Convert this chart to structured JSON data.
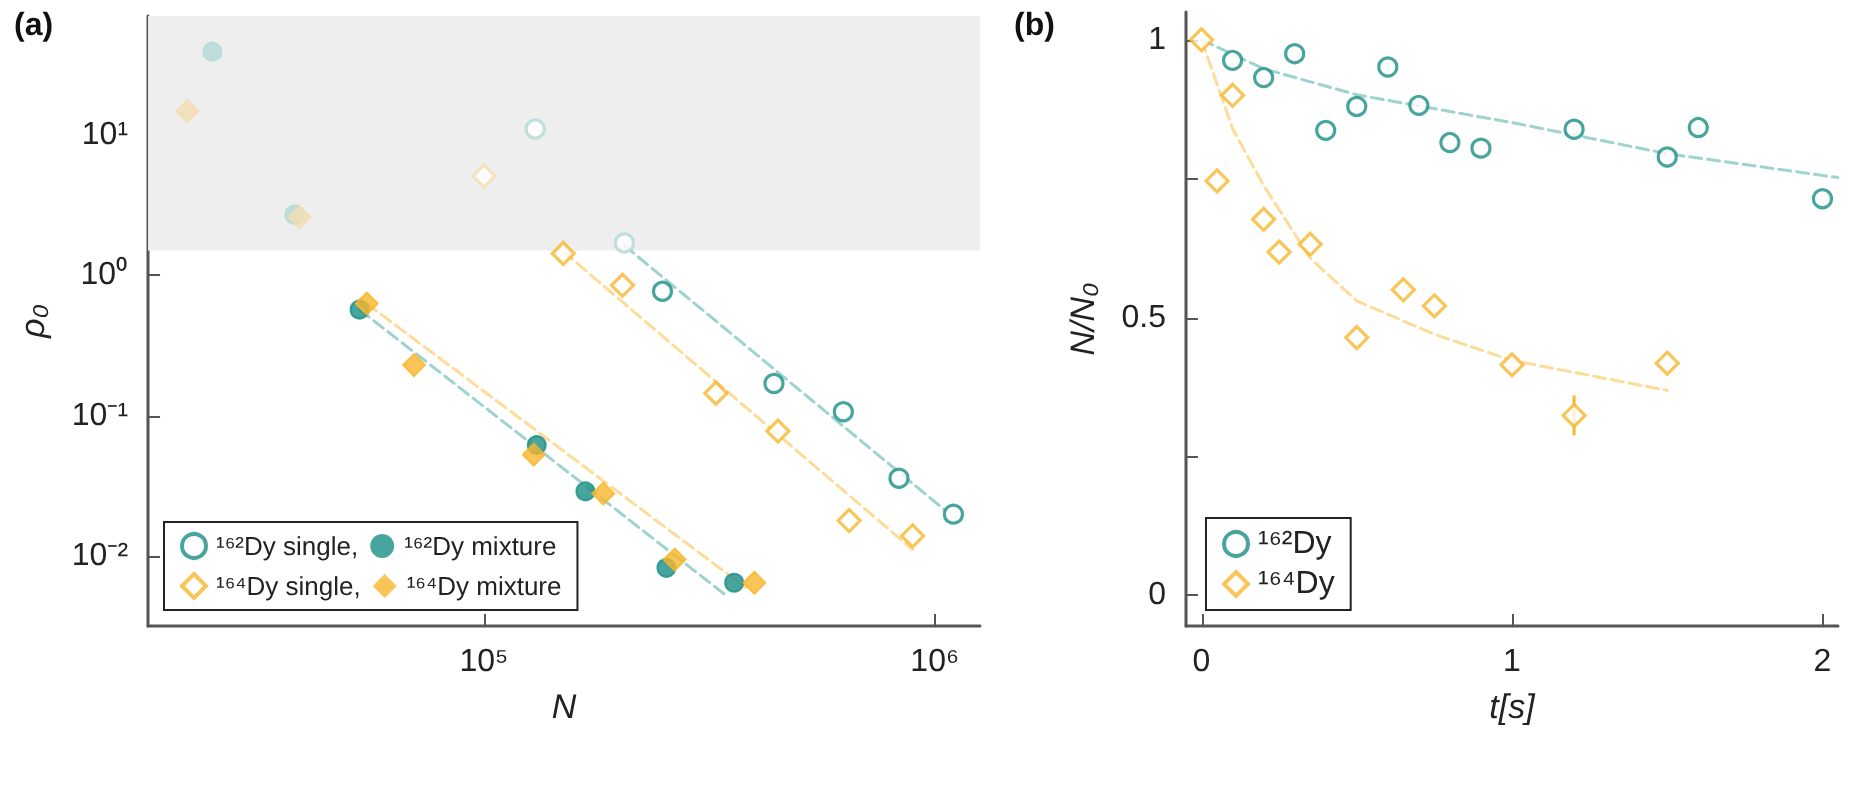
{
  "chart_data": [
    {
      "type": "scatter",
      "title": "(a)",
      "xlabel": "N",
      "ylabel": "ρ₀",
      "log": "xy",
      "xlim": [
        18000,
        1260000
      ],
      "ylim": [
        0.0032,
        70
      ],
      "xticks": [
        {
          "value": 100000,
          "label": "10⁵"
        },
        {
          "value": 1000000,
          "label": "10⁶"
        }
      ],
      "yticks": [
        {
          "value": 0.01,
          "label": "10⁻²"
        },
        {
          "value": 0.1,
          "label": "10⁻¹"
        },
        {
          "value": 1,
          "label": "10⁰"
        },
        {
          "value": 10,
          "label": "10¹"
        }
      ],
      "bands": [
        {
          "axis": "y",
          "from": 1.5,
          "to": 70,
          "color": "#eeeeee"
        }
      ],
      "legend": "bottom left",
      "grid": false,
      "series": [
        {
          "name": "¹⁶²Dy single,",
          "marker": "circle",
          "color": "#1a8f86",
          "x": [
            130000,
            205000,
            249000,
            440000,
            627000,
            833000,
            1100000
          ],
          "values": [
            11,
            1.7,
            0.77,
            0.17,
            0.107,
            0.036,
            0.02
          ],
          "colors": [
            "#b3d9d6",
            "#b3d9d6",
            "#1a8f86",
            "#1a8f86",
            "#1a8f86",
            "#1a8f86",
            "#1a8f86"
          ]
        },
        {
          "name": "¹⁶²Dy mixture",
          "marker": "circle",
          "color": "#1a8f86",
          "x": [
            25000,
            38000,
            53000,
            131000,
            168000,
            254000,
            359000
          ],
          "values": [
            39,
            2.7,
            0.57,
            0.062,
            0.029,
            0.0083,
            0.0065
          ],
          "colors": [
            "#b3d9d6",
            "#b3d9d6",
            "#1a8f86",
            "#1a8f86",
            "#1a8f86",
            "#1a8f86",
            "#1a8f86"
          ]
        },
        {
          "name": "¹⁶⁴Dy single,",
          "marker": "diamond",
          "color": "#f8b62d",
          "x": [
            100000,
            150000,
            203000,
            327000,
            449000,
            646000,
            893000
          ],
          "values": [
            5.1,
            1.43,
            0.85,
            0.145,
            0.078,
            0.018,
            0.014
          ],
          "colors": [
            "#f3ddb0",
            "#f8b62d",
            "#f8b62d",
            "#f8b62d",
            "#f8b62d",
            "#f8b62d",
            "#f8b62d"
          ]
        },
        {
          "name": "¹⁶⁴Dy mixture",
          "marker": "diamond",
          "color": "#f8b62d",
          "x": [
            22000,
            39000,
            55000,
            70000,
            129000,
            184000,
            265000,
            398000
          ],
          "values": [
            14.7,
            2.6,
            0.63,
            0.23,
            0.053,
            0.028,
            0.0095,
            0.0065
          ],
          "colors": [
            "#f3ddb0",
            "#f3ddb0",
            "#f8b62d",
            "#f8b62d",
            "#f8b62d",
            "#f8b62d",
            "#f8b62d",
            "#f8b62d"
          ]
        },
        {
          "type": "line",
          "marker": "none",
          "line_style": "dashed",
          "color": "#9fd3d0",
          "x": [
            205000,
            1060000
          ],
          "values": [
            1.63,
            0.021
          ]
        },
        {
          "type": "line",
          "marker": "none",
          "line_style": "dashed",
          "color": "#fddc9a",
          "x": [
            150000,
            893000
          ],
          "values": [
            1.48,
            0.0112
          ]
        },
        {
          "type": "line",
          "marker": "none",
          "line_style": "dashed",
          "color": "#9fd3d0",
          "x": [
            53000,
            344000
          ],
          "values": [
            0.57,
            0.0053
          ]
        },
        {
          "type": "line",
          "marker": "none",
          "line_style": "dashed",
          "color": "#fddc9a",
          "x": [
            55000,
            381000
          ],
          "values": [
            0.63,
            0.006
          ]
        }
      ]
    },
    {
      "type": "scatter",
      "title": "(b)",
      "xlabel": "t[s]",
      "ylabel": "N/N₀",
      "xlim": [
        -0.05,
        2.05
      ],
      "ylim": [
        -0.055,
        1.05
      ],
      "xticks": [
        0,
        1,
        2
      ],
      "yticks": [
        0,
        {
          "value": 0.25,
          "label": null
        },
        0.5,
        {
          "value": 0.75,
          "label": null
        },
        1
      ],
      "legend": "bottom left",
      "grid": false,
      "series": [
        {
          "name": "¹⁶²Dy",
          "marker": "circle",
          "color": "#1a8f86",
          "x": [
            0.1,
            0.2,
            0.3,
            0.4,
            0.5,
            0.6,
            0.7,
            0.8,
            0.9,
            1.2,
            1.5,
            1.6,
            2.0
          ],
          "values": [
            0.963,
            0.932,
            0.975,
            0.837,
            0.88,
            0.951,
            0.882,
            0.815,
            0.805,
            0.839,
            0.789,
            0.842,
            0.714
          ]
        },
        {
          "name": "¹⁶⁴Dy",
          "marker": "diamond",
          "color": "#f8b62d",
          "x": [
            0,
            0.05,
            0.1,
            0.2,
            0.25,
            0.35,
            0.5,
            0.65,
            0.75,
            1.0,
            1.2,
            1.5
          ],
          "values": [
            1.0,
            0.746,
            0.9,
            0.677,
            0.618,
            0.632,
            0.464,
            0.55,
            0.521,
            0.415,
            0.324,
            0.418
          ],
          "errors": [
            null,
            null,
            null,
            null,
            null,
            null,
            null,
            null,
            null,
            null,
            0.036,
            null
          ]
        },
        {
          "type": "line",
          "marker": "none",
          "line_style": "dashed",
          "color": "#9fd3d0",
          "x": [
            0,
            0.2,
            0.5,
            1.0,
            1.5,
            2.05
          ],
          "values": [
            1.0,
            0.948,
            0.901,
            0.851,
            0.795,
            0.752
          ]
        },
        {
          "type": "line",
          "marker": "none",
          "line_style": "dashed",
          "color": "#fddc9a",
          "x": [
            0,
            0.1,
            0.2,
            0.35,
            0.5,
            0.75,
            1.0,
            1.5
          ],
          "values": [
            1.0,
            0.84,
            0.738,
            0.607,
            0.53,
            0.47,
            0.423,
            0.369
          ]
        }
      ]
    }
  ]
}
